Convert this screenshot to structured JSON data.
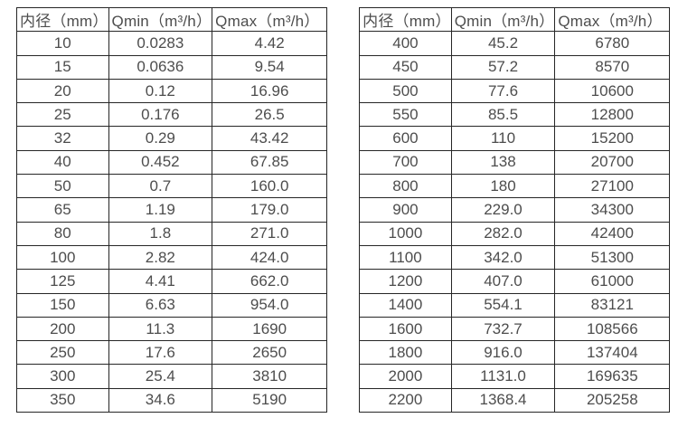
{
  "colors": {
    "text": "#4d4d4d",
    "border": "#262626",
    "background": "#ffffff"
  },
  "tables": [
    {
      "name": "flow-table-small-diameters",
      "headers": [
        "内径（mm）",
        "Qmin（m³/h）",
        "Qmax（m³/h）"
      ],
      "rows": [
        [
          "10",
          "0.0283",
          "4.42"
        ],
        [
          "15",
          "0.0636",
          "9.54"
        ],
        [
          "20",
          "0.12",
          "16.96"
        ],
        [
          "25",
          "0.176",
          "26.5"
        ],
        [
          "32",
          "0.29",
          "43.42"
        ],
        [
          "40",
          "0.452",
          "67.85"
        ],
        [
          "50",
          "0.7",
          "160.0"
        ],
        [
          "65",
          "1.19",
          "179.0"
        ],
        [
          "80",
          "1.8",
          "271.0"
        ],
        [
          "100",
          "2.82",
          "424.0"
        ],
        [
          "125",
          "4.41",
          "662.0"
        ],
        [
          "150",
          "6.63",
          "954.0"
        ],
        [
          "200",
          "11.3",
          "1690"
        ],
        [
          "250",
          "17.6",
          "2650"
        ],
        [
          "300",
          "25.4",
          "3810"
        ],
        [
          "350",
          "34.6",
          "5190"
        ]
      ]
    },
    {
      "name": "flow-table-large-diameters",
      "headers": [
        "内径（mm）",
        "Qmin（m³/h）",
        "Qmax（m³/h）"
      ],
      "rows": [
        [
          "400",
          "45.2",
          "6780"
        ],
        [
          "450",
          "57.2",
          "8570"
        ],
        [
          "500",
          "77.6",
          "10600"
        ],
        [
          "550",
          "85.5",
          "12800"
        ],
        [
          "600",
          "110",
          "15200"
        ],
        [
          "700",
          "138",
          "20700"
        ],
        [
          "800",
          "180",
          "27100"
        ],
        [
          "900",
          "229.0",
          "34300"
        ],
        [
          "1000",
          "282.0",
          "42400"
        ],
        [
          "1100",
          "342.0",
          "51300"
        ],
        [
          "1200",
          "407.0",
          "61000"
        ],
        [
          "1400",
          "554.1",
          "83121"
        ],
        [
          "1600",
          "732.7",
          "108566"
        ],
        [
          "1800",
          "916.0",
          "137404"
        ],
        [
          "2000",
          "1131.0",
          "169635"
        ],
        [
          "2200",
          "1368.4",
          "205258"
        ]
      ]
    }
  ]
}
